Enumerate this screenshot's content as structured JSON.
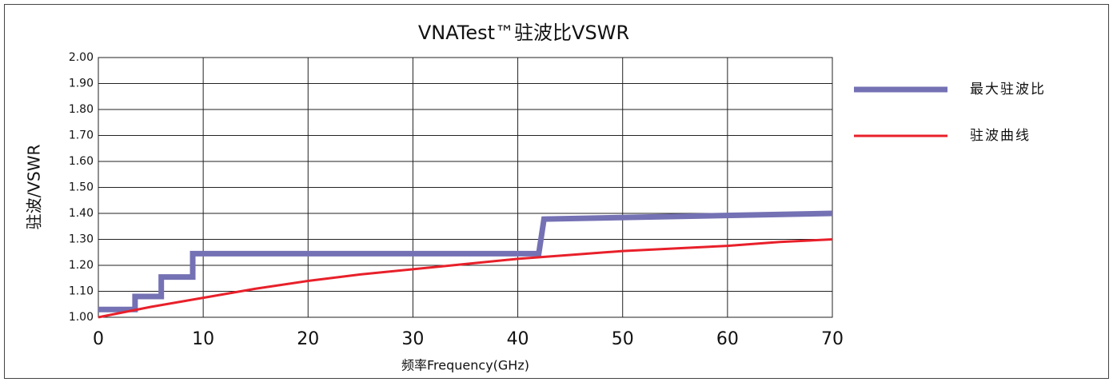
{
  "chart_data": {
    "type": "line",
    "title": "VNATest™驻波比VSWR",
    "x_label": "频率Frequency(GHz)",
    "y_label": "驻波/VSWR",
    "xlim": [
      0,
      70
    ],
    "xticks": [
      0,
      10,
      20,
      30,
      40,
      50,
      60,
      70
    ],
    "ylim": [
      1.0,
      2.0
    ],
    "yticks": [
      {
        "value": 1.0,
        "label": "1.00"
      },
      {
        "value": 1.1,
        "label": "1.10"
      },
      {
        "value": 1.2,
        "label": "1.20"
      },
      {
        "value": 1.3,
        "label": "1.30"
      },
      {
        "value": 1.4,
        "label": "1.40"
      },
      {
        "value": 1.5,
        "label": "1.50"
      },
      {
        "value": 1.6,
        "label": "1.60"
      },
      {
        "value": 1.7,
        "label": "1.70"
      },
      {
        "value": 1.8,
        "label": "1.80"
      },
      {
        "value": 1.9,
        "label": "1.90"
      },
      {
        "value": 2.0,
        "label": "2.00"
      }
    ],
    "grid": true,
    "legend": "right",
    "series": [
      {
        "name": "最大驻波比",
        "color": "#7471b4",
        "width": 7,
        "x": [
          0,
          3.5,
          3.5,
          6,
          6,
          9,
          9,
          42,
          42.5,
          70
        ],
        "values": [
          1.03,
          1.03,
          1.08,
          1.08,
          1.155,
          1.155,
          1.245,
          1.245,
          1.378,
          1.4
        ]
      },
      {
        "name": "驻波曲线",
        "color": "#e8202a",
        "width": 3,
        "x": [
          0,
          5,
          10,
          15,
          20,
          25,
          30,
          35,
          40,
          45,
          50,
          55,
          60,
          65,
          70
        ],
        "values": [
          1.0,
          1.04,
          1.075,
          1.11,
          1.14,
          1.165,
          1.185,
          1.205,
          1.225,
          1.24,
          1.255,
          1.265,
          1.275,
          1.29,
          1.3
        ]
      }
    ]
  }
}
